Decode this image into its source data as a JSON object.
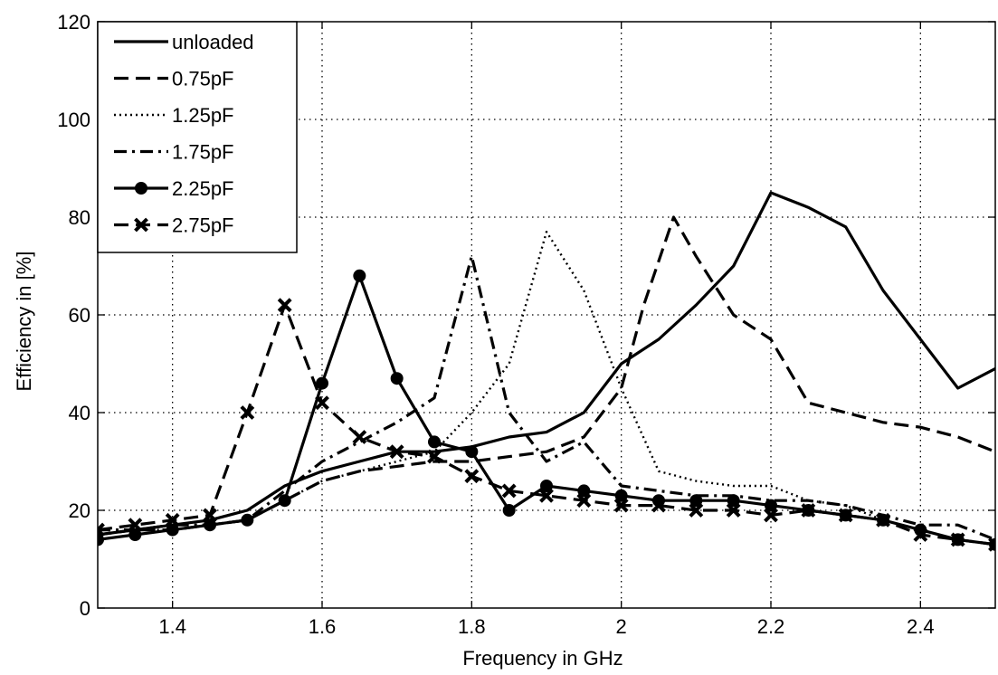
{
  "chart_data": {
    "type": "line",
    "title": "",
    "xlabel": "Frequency in GHz",
    "ylabel": "Efficiency in [%]",
    "xlim": [
      1.3,
      2.5
    ],
    "ylim": [
      0,
      120
    ],
    "x_ticks": [
      1.4,
      1.6,
      1.8,
      2,
      2.2,
      2.4
    ],
    "x_tick_labels": [
      "1.4",
      "1.6",
      "1.8",
      "2",
      "2.2",
      "2.4"
    ],
    "y_ticks": [
      0,
      20,
      40,
      60,
      80,
      100,
      120
    ],
    "y_tick_labels": [
      "0",
      "20",
      "40",
      "60",
      "80",
      "100",
      "120"
    ],
    "grid": true,
    "legend_position": "top-left",
    "series": [
      {
        "name": "unloaded",
        "style": "solid",
        "marker": "none",
        "x": [
          1.3,
          1.35,
          1.4,
          1.45,
          1.5,
          1.55,
          1.6,
          1.65,
          1.7,
          1.75,
          1.8,
          1.85,
          1.9,
          1.95,
          2.0,
          2.05,
          2.1,
          2.15,
          2.2,
          2.25,
          2.3,
          2.35,
          2.4,
          2.45,
          2.5
        ],
        "y": [
          15,
          16,
          17,
          18,
          20,
          25,
          28,
          30,
          32,
          32,
          33,
          35,
          36,
          40,
          50,
          55,
          62,
          70,
          85,
          82,
          78,
          65,
          55,
          45,
          49
        ]
      },
      {
        "name": "0.75pF",
        "style": "dashed",
        "marker": "none",
        "x": [
          1.3,
          1.35,
          1.4,
          1.45,
          1.5,
          1.55,
          1.6,
          1.65,
          1.7,
          1.75,
          1.8,
          1.85,
          1.9,
          1.95,
          2.0,
          2.03,
          2.07,
          2.1,
          2.15,
          2.2,
          2.25,
          2.3,
          2.35,
          2.4,
          2.45,
          2.5
        ],
        "y": [
          15,
          16,
          16,
          17,
          18,
          22,
          26,
          28,
          29,
          30,
          30,
          31,
          32,
          35,
          45,
          62,
          80,
          72,
          60,
          55,
          42,
          40,
          38,
          37,
          35,
          32
        ]
      },
      {
        "name": "1.25pF",
        "style": "dotted",
        "marker": "none",
        "x": [
          1.3,
          1.35,
          1.4,
          1.45,
          1.5,
          1.55,
          1.6,
          1.65,
          1.7,
          1.75,
          1.8,
          1.85,
          1.9,
          1.95,
          2.0,
          2.05,
          2.1,
          2.15,
          2.2,
          2.25,
          2.3,
          2.35,
          2.4,
          2.45,
          2.5
        ],
        "y": [
          15,
          16,
          16,
          17,
          18,
          22,
          26,
          28,
          30,
          32,
          40,
          50,
          77,
          65,
          45,
          28,
          26,
          25,
          25,
          22,
          21,
          18,
          16,
          14,
          13
        ]
      },
      {
        "name": "1.75pF",
        "style": "dashdot",
        "marker": "none",
        "x": [
          1.3,
          1.35,
          1.4,
          1.45,
          1.5,
          1.55,
          1.6,
          1.65,
          1.7,
          1.75,
          1.8,
          1.85,
          1.9,
          1.95,
          2.0,
          2.05,
          2.1,
          2.15,
          2.2,
          2.25,
          2.3,
          2.35,
          2.4,
          2.45,
          2.5
        ],
        "y": [
          16,
          16,
          17,
          17,
          18,
          24,
          30,
          34,
          38,
          43,
          72,
          40,
          30,
          34,
          25,
          24,
          23,
          23,
          22,
          22,
          21,
          19,
          17,
          17,
          14
        ]
      },
      {
        "name": "2.25pF",
        "style": "solid",
        "marker": "circle",
        "x": [
          1.3,
          1.35,
          1.4,
          1.45,
          1.5,
          1.55,
          1.6,
          1.65,
          1.7,
          1.75,
          1.8,
          1.85,
          1.9,
          1.95,
          2.0,
          2.05,
          2.1,
          2.15,
          2.2,
          2.25,
          2.3,
          2.35,
          2.4,
          2.45,
          2.5
        ],
        "y": [
          14,
          15,
          16,
          17,
          18,
          22,
          46,
          68,
          47,
          34,
          32,
          20,
          25,
          24,
          23,
          22,
          22,
          22,
          21,
          20,
          19,
          18,
          16,
          14,
          13
        ]
      },
      {
        "name": "2.75pF",
        "style": "dashed",
        "marker": "x",
        "x": [
          1.3,
          1.35,
          1.4,
          1.45,
          1.5,
          1.55,
          1.6,
          1.65,
          1.7,
          1.75,
          1.8,
          1.85,
          1.9,
          1.95,
          2.0,
          2.05,
          2.1,
          2.15,
          2.2,
          2.25,
          2.3,
          2.35,
          2.4,
          2.45,
          2.5
        ],
        "y": [
          16,
          17,
          18,
          19,
          40,
          62,
          42,
          35,
          32,
          31,
          27,
          24,
          23,
          22,
          21,
          21,
          20,
          20,
          19,
          20,
          19,
          18,
          15,
          14,
          13
        ]
      }
    ]
  }
}
